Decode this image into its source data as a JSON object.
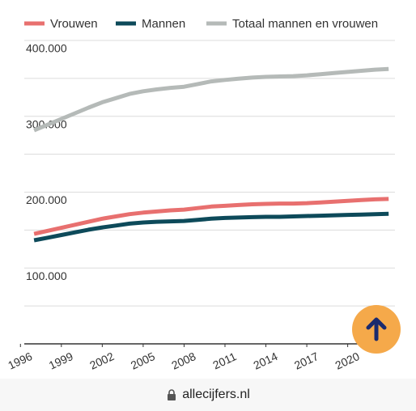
{
  "chart_data": {
    "type": "line",
    "x": [
      1997,
      1998,
      1999,
      2000,
      2001,
      2002,
      2003,
      2004,
      2005,
      2006,
      2007,
      2008,
      2009,
      2010,
      2011,
      2012,
      2013,
      2014,
      2015,
      2016,
      2017,
      2018,
      2019,
      2020,
      2021,
      2022,
      2023
    ],
    "series": [
      {
        "name": "Vrouwen",
        "color": "#e8706f",
        "values": [
          145000,
          149000,
          153000,
          157000,
          161000,
          165000,
          168000,
          171000,
          173000,
          174500,
          176000,
          177000,
          179000,
          181000,
          182000,
          183000,
          184000,
          184500,
          185000,
          185000,
          185500,
          186500,
          187500,
          188500,
          189500,
          190500,
          191000
        ]
      },
      {
        "name": "Mannen",
        "color": "#0d4a5a",
        "values": [
          136500,
          140000,
          143500,
          147000,
          150500,
          153500,
          156000,
          158500,
          160000,
          161000,
          161500,
          162000,
          163500,
          165000,
          166000,
          166500,
          167000,
          167500,
          167500,
          168000,
          168500,
          169000,
          169500,
          170000,
          170500,
          171000,
          171500
        ]
      },
      {
        "name": "Totaal mannen en vrouwen",
        "color": "#b5bab8",
        "values": [
          281500,
          289000,
          296500,
          304000,
          311500,
          318500,
          324000,
          329500,
          333000,
          335500,
          337500,
          339000,
          342500,
          346000,
          348000,
          349500,
          351000,
          352000,
          352500,
          353000,
          354000,
          355500,
          357000,
          358500,
          360000,
          361500,
          362500
        ]
      }
    ],
    "xlim": [
      1994.5,
      2024
    ],
    "xticks": [
      1996,
      1999,
      2002,
      2005,
      2008,
      2011,
      2014,
      2017,
      2020
    ],
    "ylim": [
      0,
      400000
    ],
    "yticks": [
      {
        "value": 100000,
        "label": "100.000"
      },
      {
        "value": 200000,
        "label": "200.000"
      },
      {
        "value": 300000,
        "label": "300.000"
      },
      {
        "value": 400000,
        "label": "400.000"
      }
    ],
    "minor_gridlines": [
      0,
      50000,
      150000,
      250000,
      350000
    ],
    "grid": true,
    "legend": "top"
  },
  "browser_bar": {
    "url": "allecijfers.nl"
  }
}
